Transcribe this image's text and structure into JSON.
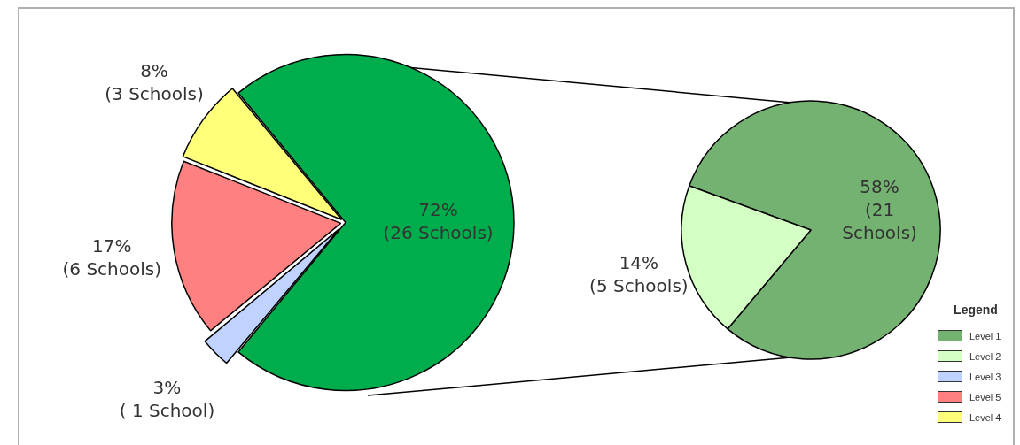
{
  "chart_data": [
    {
      "type": "pie",
      "categories": [
        null,
        "Level 3",
        "Level 5",
        "Level 4"
      ],
      "values": [
        72,
        3,
        17,
        8
      ],
      "colors": [
        "#00ad4d",
        "#c0d2ff",
        "#ff8080",
        "#ffff7a"
      ],
      "value_labels": [
        "72%\n(26 Schools)",
        "3%\n( 1 School)",
        "17%\n(6 Schools)",
        "8%\n(3 Schools)"
      ],
      "legend": "bottom right"
    },
    {
      "type": "pie",
      "categories": [
        "Level 1",
        "Level 2"
      ],
      "values": [
        58,
        14
      ],
      "colors": [
        "#74b272",
        "#d4ffc4"
      ],
      "value_labels": [
        "58%\n(21\nSchools)",
        "14%\n(5 Schools)"
      ],
      "legend": "bottom right",
      "legend_title": "Legend"
    }
  ]
}
